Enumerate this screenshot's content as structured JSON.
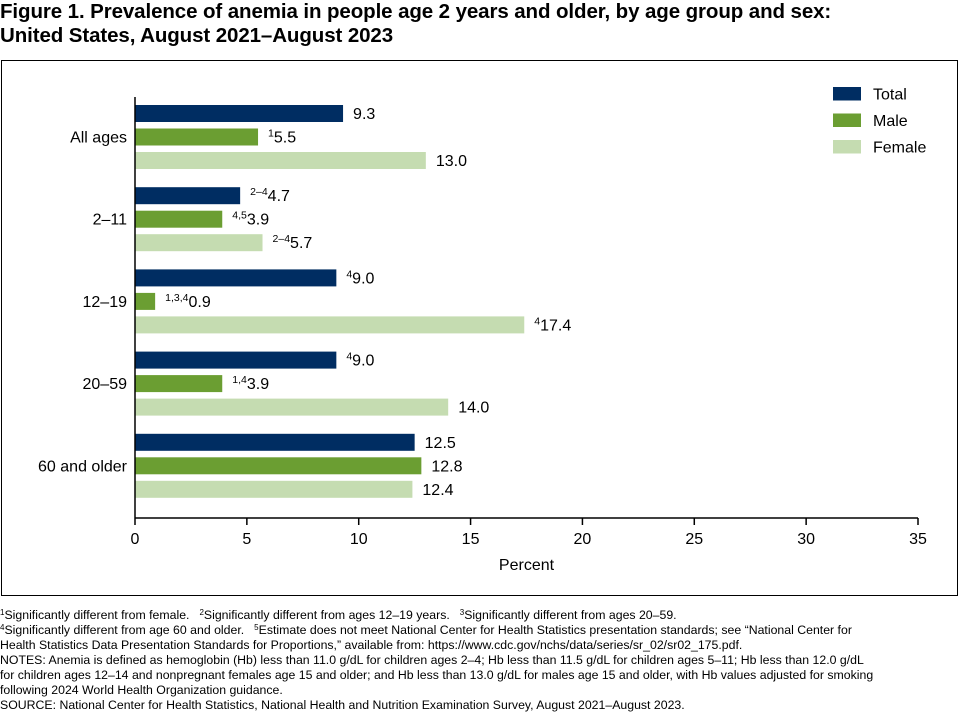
{
  "title_line1": "Figure 1. Prevalence of anemia in people age 2 years and older, by age group and sex:",
  "title_line2": "United States, August 2021–August 2023",
  "chart_data": {
    "type": "bar",
    "orientation": "horizontal",
    "categories": [
      "All ages",
      "2–11",
      "12–19",
      "20–59",
      "60 and older"
    ],
    "series": [
      {
        "name": "Total",
        "color": "#002d62",
        "values": [
          9.3,
          4.7,
          9.0,
          9.0,
          12.5
        ],
        "superscripts": [
          "",
          "2–4",
          "4",
          "4",
          ""
        ]
      },
      {
        "name": "Male",
        "color": "#6b9e32",
        "values": [
          5.5,
          3.9,
          0.9,
          3.9,
          12.8
        ],
        "superscripts": [
          "1",
          "4,5",
          "1,3,4",
          "1,4",
          ""
        ]
      },
      {
        "name": "Female",
        "color": "#c5dcb1",
        "values": [
          13.0,
          5.7,
          17.4,
          14.0,
          12.4
        ],
        "superscripts": [
          "",
          "2–4",
          "4",
          "",
          ""
        ]
      }
    ],
    "xlabel": "Percent",
    "xlim": [
      0,
      35
    ],
    "xticks": [
      "0",
      "5",
      "10",
      "15",
      "20",
      "25",
      "30",
      "35"
    ],
    "legend_position": "top-right",
    "grid": false
  },
  "footnotes": {
    "fn1_mark": "1",
    "fn1_text": "Significantly different from female.",
    "fn2_mark": "2",
    "fn2_text": "Significantly different from ages 12–19 years.",
    "fn3_mark": "3",
    "fn3_text": "Significantly different from ages 20–59.",
    "fn4_mark": "4",
    "fn4_text": "Significantly different from age 60 and older.",
    "fn5_mark": "5",
    "fn5_text": "Estimate does not meet National Center for Health Statistics presentation standards; see “National Center for",
    "fn5_text_cont": "Health Statistics Data Presentation Standards for Proportions,” available from: https://www.cdc.gov/nchs/data/series/sr_02/sr02_175.pdf.",
    "notes_line1": "NOTES: Anemia is defined as hemoglobin (Hb) less than 11.0 g/dL for children ages 2–4; Hb less than 11.5 g/dL for children ages 5–11; Hb less than 12.0 g/dL",
    "notes_line2": "for children ages 12–14 and nonpregnant females age 15 and older; and Hb less than 13.0 g/dL for males age 15 and older, with Hb values adjusted for smoking",
    "notes_line3": "following 2024 World Health Organization guidance.",
    "source": "SOURCE: National Center for Health Statistics, National Health and Nutrition Examination Survey, August 2021–August 2023."
  }
}
